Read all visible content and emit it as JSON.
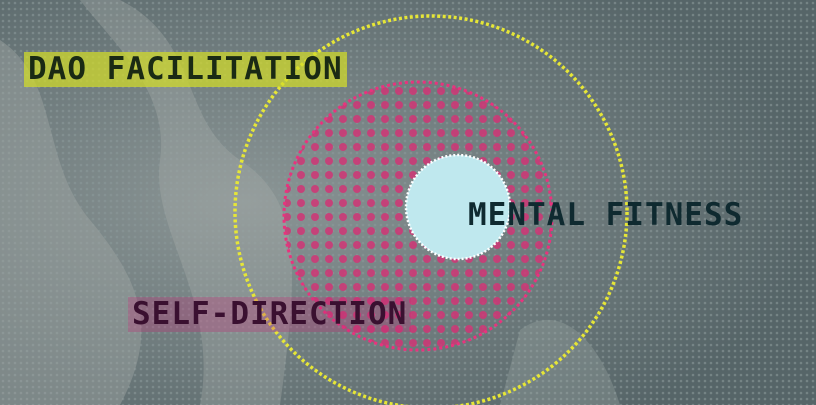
{
  "labels": {
    "outer": "DAO FACILITATION",
    "inner": "MENTAL FITNESS",
    "middle": "SELF-DIRECTION"
  },
  "colors": {
    "background": "#5e6d70",
    "outer_ring": "#e6e637",
    "middle_ring": "#e8337e",
    "core": "#bfe8ee"
  }
}
